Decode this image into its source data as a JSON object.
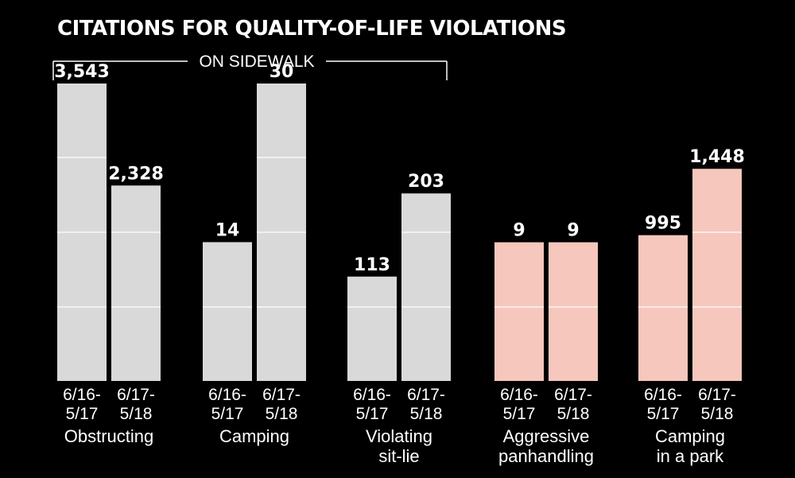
{
  "chart_data": {
    "type": "bar",
    "title": "CITATIONS FOR QUALITY-OF-LIFE VIOLATIONS",
    "group_bracket": {
      "label": "ON SIDEWALK",
      "spans_categories": [
        "Obstructing",
        "Camping",
        "Violating sit-lie"
      ]
    },
    "periods": [
      "6/16-\n5/17",
      "6/17-\n5/18"
    ],
    "value_labels_note": "Each category is drawn on its own scale; values are printed above the bars.",
    "groups": [
      {
        "category_lines": [
          "Obstructing"
        ],
        "color": "#d9d9d9",
        "scale_max": 3543,
        "values": [
          3543,
          2328
        ],
        "labels": [
          "3,543",
          "2,328"
        ]
      },
      {
        "category_lines": [
          "Camping"
        ],
        "color": "#d9d9d9",
        "scale_max": 30,
        "values": [
          14,
          30
        ],
        "labels": [
          "14",
          "30"
        ]
      },
      {
        "category_lines": [
          "Violating",
          "sit-lie"
        ],
        "color": "#d9d9d9",
        "scale_max": 322,
        "values": [
          113,
          203
        ],
        "labels": [
          "113",
          "203"
        ]
      },
      {
        "category_lines": [
          "Aggressive",
          "panhandling"
        ],
        "color": "#f6c7bd",
        "scale_max": 19.3,
        "values": [
          9,
          9
        ],
        "labels": [
          "9",
          "9"
        ]
      },
      {
        "category_lines": [
          "Camping",
          "in a park"
        ],
        "color": "#f6c7bd",
        "scale_max": 2030,
        "values": [
          995,
          1448
        ],
        "labels": [
          "995",
          "1,448"
        ]
      }
    ],
    "period_lines": [
      [
        "6/16-",
        "5/17"
      ],
      [
        "6/17-",
        "5/18"
      ]
    ],
    "gridlines": true
  }
}
